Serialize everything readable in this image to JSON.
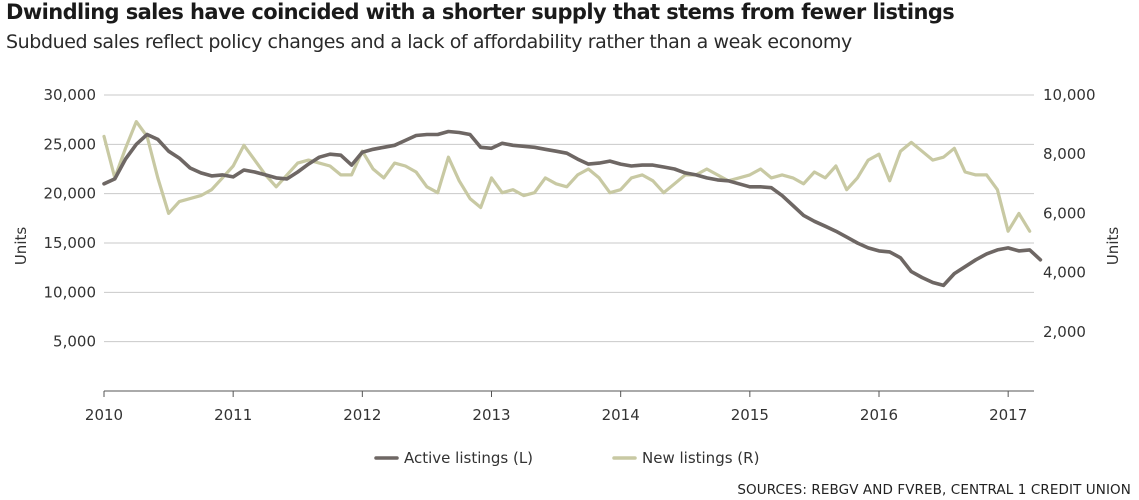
{
  "chart_data": {
    "type": "line",
    "title": "Dwindling sales have coincided with a shorter supply that stems from fewer listings",
    "subtitle": "Subdued sales reflect policy changes and a lack of affordability rather than a weak economy",
    "left_axis": {
      "label": "Units",
      "range": [
        0,
        30000
      ],
      "ticks": [
        "5,000",
        "10,000",
        "15,000",
        "20,000",
        "25,000",
        "30,000"
      ],
      "tick_values": [
        5000,
        10000,
        15000,
        20000,
        25000,
        30000
      ]
    },
    "right_axis": {
      "label": "Units",
      "range": [
        0,
        10000
      ],
      "ticks": [
        "2,000",
        "4,000",
        "6,000",
        "8,000",
        "10,000"
      ],
      "tick_values": [
        2000,
        4000,
        6000,
        8000,
        10000
      ]
    },
    "x_axis": {
      "range": [
        2010,
        2017.2
      ],
      "ticks": [
        "2010",
        "2011",
        "2012",
        "2013",
        "2014",
        "2015",
        "2016",
        "2017"
      ],
      "tick_values": [
        2010,
        2011,
        2012,
        2013,
        2014,
        2015,
        2016,
        2017
      ]
    },
    "grid": "horizontal",
    "legend_position": "bottom",
    "series": [
      {
        "name": "Active listings (L)",
        "axis": "left",
        "color": "#6e6764",
        "x_start": 2010.0,
        "x_step": 0.08333,
        "values": [
          21000,
          21500,
          23500,
          25000,
          26000,
          25500,
          24300,
          23600,
          22600,
          22100,
          21800,
          21900,
          21700,
          22400,
          22200,
          21900,
          21600,
          21500,
          22200,
          23000,
          23700,
          24000,
          23900,
          22900,
          24200,
          24500,
          24700,
          24900,
          25400,
          25900,
          26000,
          26000,
          26300,
          26200,
          26000,
          24700,
          24600,
          25100,
          24900,
          24800,
          24700,
          24500,
          24300,
          24100,
          23500,
          23000,
          23100,
          23300,
          23000,
          22800,
          22900,
          22900,
          22700,
          22500,
          22100,
          21900,
          21600,
          21400,
          21300,
          21000,
          20700,
          20700,
          20600,
          19800,
          18800,
          17800,
          17200,
          16700,
          16200,
          15600,
          15000,
          14500,
          14200,
          14100,
          13500,
          12100,
          11500,
          11000,
          10700,
          11900,
          12600,
          13300,
          13900,
          14300,
          14500,
          14200,
          14300,
          13300
        ]
      },
      {
        "name": "New listings (R)",
        "axis": "right",
        "color": "#c8c9a3",
        "x_start": 2010.0,
        "x_step": 0.08333,
        "values": [
          8600,
          7200,
          8200,
          9100,
          8600,
          7200,
          6000,
          6400,
          6500,
          6600,
          6800,
          7200,
          7600,
          8300,
          7800,
          7300,
          6900,
          7300,
          7700,
          7800,
          7700,
          7600,
          7300,
          7300,
          8100,
          7500,
          7200,
          7700,
          7600,
          7400,
          6900,
          6700,
          7900,
          7100,
          6500,
          6200,
          7200,
          6700,
          6800,
          6600,
          6700,
          7200,
          7000,
          6900,
          7300,
          7500,
          7200,
          6700,
          6800,
          7200,
          7300,
          7100,
          6700,
          7000,
          7300,
          7300,
          7500,
          7300,
          7100,
          7200,
          7300,
          7500,
          7200,
          7300,
          7200,
          7000,
          7400,
          7200,
          7600,
          6800,
          7200,
          7800,
          8000,
          7100,
          8100,
          8400,
          8100,
          7800,
          7900,
          8200,
          7400,
          7300,
          7300,
          6800,
          5400,
          6000,
          5400
        ]
      }
    ]
  },
  "legend": {
    "active": "Active listings (L)",
    "new": "New listings (R)"
  },
  "source": "SOURCES: REBGV AND FVREB, CENTRAL 1 CREDIT UNION",
  "colors": {
    "active": "#6e6764",
    "new": "#c8c9a3",
    "grid": "#c9c9c9",
    "axis": "#555555"
  }
}
